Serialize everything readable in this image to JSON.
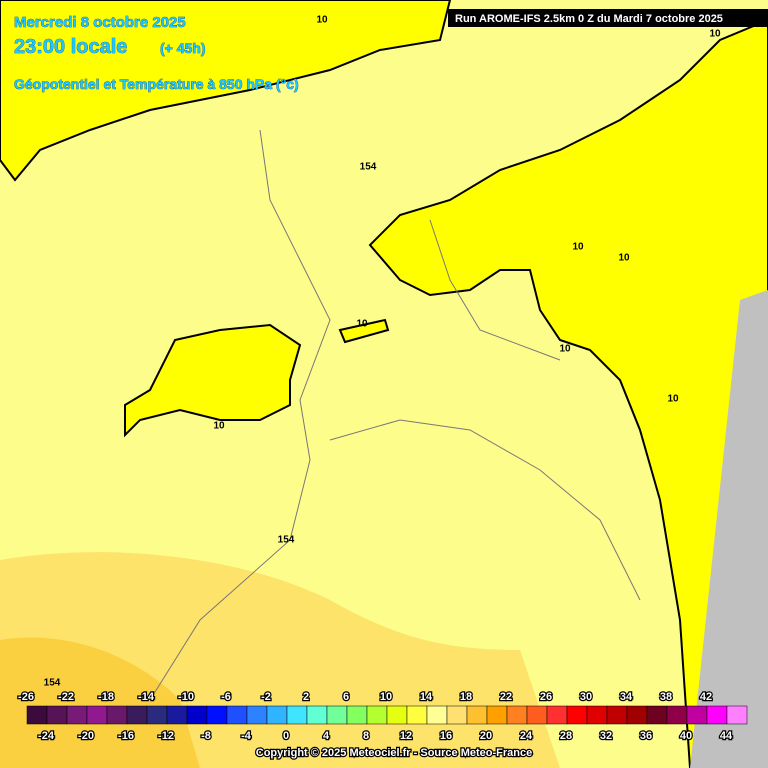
{
  "header": {
    "date": "Mercredi 8 octobre 2025",
    "time": "23:00 locale",
    "lead": "(+ 45h)",
    "parameter": "Géopotentiel et Température à 850 hPa (°c)",
    "run": "Run AROME-IFS 2.5km 0 Z du Mardi 7 octobre 2025"
  },
  "contour_labels": [
    "10",
    "10",
    "10",
    "10",
    "10",
    "10",
    "10",
    "10",
    "154",
    "154",
    "154"
  ],
  "legend": {
    "ticks": [
      -26,
      -24,
      -22,
      -20,
      -18,
      -16,
      -14,
      -12,
      -10,
      -8,
      -6,
      -4,
      -2,
      0,
      2,
      4,
      6,
      8,
      10,
      12,
      14,
      16,
      18,
      20,
      22,
      24,
      26,
      28,
      30,
      32,
      34,
      36,
      38,
      40,
      42,
      44
    ],
    "colors": [
      "#3c0a3c",
      "#561456",
      "#781a78",
      "#901890",
      "#6a186a",
      "#3a1c5c",
      "#2a2a7e",
      "#1a1aa0",
      "#0000cc",
      "#0010ff",
      "#1e50ff",
      "#2c82ff",
      "#30b4ff",
      "#40e4ff",
      "#60ffd4",
      "#70ff98",
      "#84ff60",
      "#b4ff30",
      "#e4ff10",
      "#ffff40",
      "#ffff96",
      "#ffe070",
      "#ffc030",
      "#ffa000",
      "#ff8020",
      "#ff5c20",
      "#ff3030",
      "#ff0000",
      "#e00000",
      "#c00000",
      "#a00000",
      "#6e0020",
      "#900048",
      "#c000a0",
      "#ff00ff",
      "#ff80ff"
    ]
  },
  "footer": {
    "copyright": "Copyright © 2025 Meteociel.fr - Source Meteo-France"
  }
}
